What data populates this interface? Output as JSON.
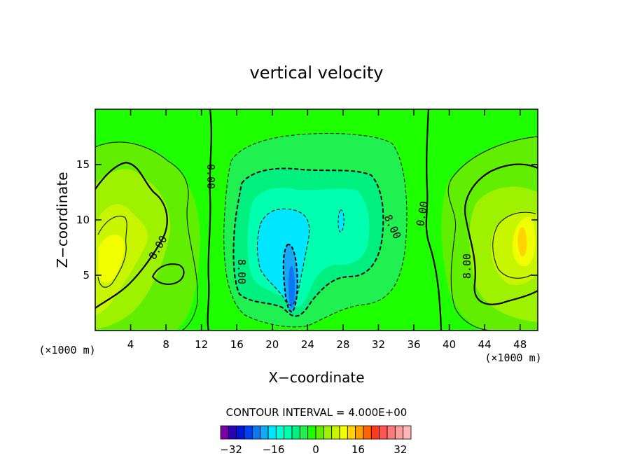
{
  "chart_data": {
    "type": "heatmap",
    "title": "vertical velocity",
    "xlabel": "X−coordinate",
    "ylabel": "Z−coordinate",
    "x_unit": "(×1000 m)",
    "z_unit": "(×1000 m)",
    "xlim": [
      0,
      50
    ],
    "ylim": [
      0,
      20
    ],
    "x_ticks": [
      4,
      8,
      12,
      16,
      20,
      24,
      28,
      32,
      36,
      40,
      44,
      48
    ],
    "y_ticks": [
      5,
      10,
      15
    ],
    "contour_interval_label": "CONTOUR INTERVAL = 4.000E+00",
    "contour_labels": [
      "0.00",
      "0.00",
      "8.00",
      "8.00",
      "8.00",
      "8.00"
    ],
    "colorbar": {
      "min": -36,
      "max": 36,
      "step": 4,
      "tick_values": [
        -32,
        -16,
        0,
        16,
        32
      ],
      "tick_labels": [
        "−32",
        "−16",
        "0",
        "16",
        "32"
      ],
      "colors": [
        "#7a00a6",
        "#2a00b8",
        "#0016d6",
        "#0040f0",
        "#0878f5",
        "#14a8f7",
        "#00e6ff",
        "#00ffd6",
        "#00ffae",
        "#00f080",
        "#20f050",
        "#1eff00",
        "#62ee00",
        "#9ef200",
        "#c8f500",
        "#f2ff00",
        "#ffd400",
        "#ffa000",
        "#ff6400",
        "#ff3a1a",
        "#ff5555",
        "#ff7a7a",
        "#ff9c9c",
        "#ffb8b8"
      ]
    },
    "field_features": [
      {
        "kind": "updraft",
        "x": 3,
        "z": 7,
        "w": 10
      },
      {
        "kind": "updraft",
        "x": 7,
        "z": 9,
        "w": 7
      },
      {
        "kind": "updraft",
        "x": 46,
        "z": 8,
        "w": 14
      },
      {
        "kind": "updraft",
        "x": 45,
        "z": 11,
        "w": 6
      },
      {
        "kind": "downdraft",
        "x": 22,
        "z": 6,
        "w": -18
      },
      {
        "kind": "downdraft",
        "x": 27,
        "z": 10,
        "w": -10
      }
    ]
  }
}
